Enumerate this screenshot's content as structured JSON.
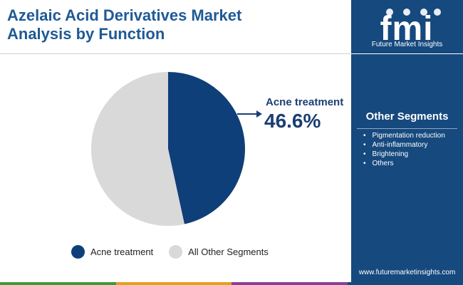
{
  "header": {
    "title_line1": "Azelaic Acid Derivatives Market",
    "title_line2": "Analysis by Function"
  },
  "brand": {
    "logo_text": "fmi",
    "name": "Future Market Insights",
    "url": "www.futuremarketinsights.com"
  },
  "sidebar": {
    "heading": "Other Segments",
    "items": [
      "Pigmentation reduction",
      "Anti-inflammatory",
      "Brightening",
      "Others"
    ]
  },
  "callout": {
    "label": "Acne treatment",
    "value": "46.6%"
  },
  "legend": {
    "items": [
      {
        "label": "Acne treatment",
        "color": "#0f3f78"
      },
      {
        "label": "All Other Segments",
        "color": "#d9d9d9"
      }
    ]
  },
  "colors": {
    "title": "#1f5a96",
    "sidebar_bg": "#16497e",
    "accent_navy": "#0f3f78",
    "slice_other": "#d9d9d9",
    "bottom_bar": [
      "#3e9a3b",
      "#e6a019",
      "#8a3f98",
      "#16497e"
    ]
  },
  "chart_data": {
    "type": "pie",
    "categories": [
      "Acne treatment",
      "All Other Segments"
    ],
    "values": [
      46.6,
      53.4
    ],
    "colors": [
      "#0f3f78",
      "#d9d9d9"
    ],
    "start_angle_deg": 0,
    "direction": "clockwise",
    "legend_position": "bottom"
  }
}
